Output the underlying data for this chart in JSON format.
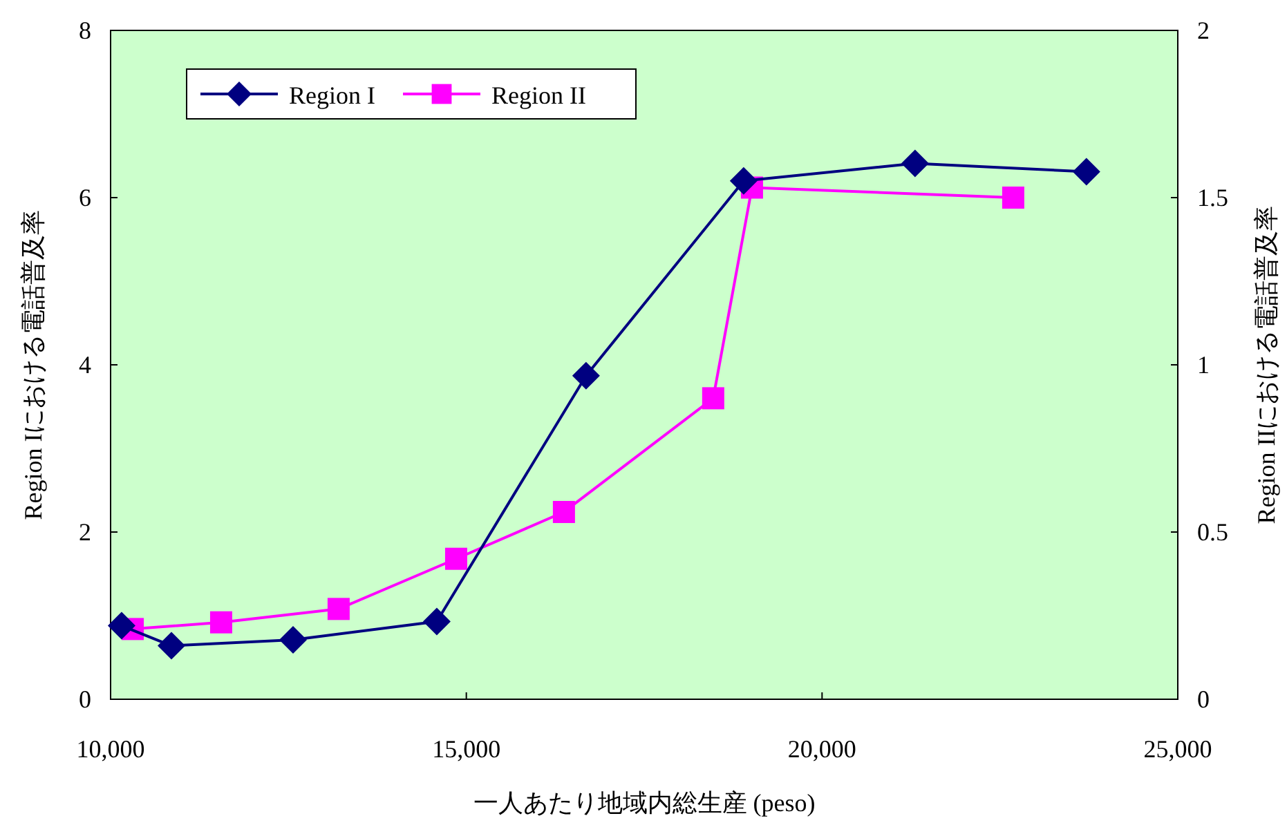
{
  "chart_data": {
    "type": "line",
    "xlabel": "一人あたり地域内総生産 (peso)",
    "ylabel": "Region Iにおける電話普及率",
    "y2label": "Region IIにおける電話普及率",
    "xlim": [
      10000,
      25000
    ],
    "xticks": [
      {
        "value": 10000,
        "label": "10,000"
      },
      {
        "value": 15000,
        "label": "15,000"
      },
      {
        "value": 20000,
        "label": "20,000"
      },
      {
        "value": 25000,
        "label": "25,000"
      }
    ],
    "ylim": [
      0,
      8
    ],
    "yticks": [
      0,
      2,
      4,
      6,
      8
    ],
    "y2lim": [
      0,
      2
    ],
    "y2ticks": [
      0,
      0.5,
      1,
      1.5,
      2
    ],
    "legend": "top left",
    "grid": false,
    "series": [
      {
        "name": "Region I",
        "color": "#000080",
        "marker": "diamond",
        "x": [
          10155,
          10855,
          12565,
          14585,
          16683,
          18898,
          21307,
          23716
        ],
        "values": [
          0.88,
          0.64,
          0.71,
          0.93,
          3.87,
          6.2,
          6.41,
          6.31
        ]
      },
      {
        "name": "Region II",
        "color": "#ff00ff",
        "marker": "square",
        "axis": "y2",
        "x": [
          10311,
          11554,
          13205,
          14857,
          16372,
          18470,
          19015,
          22687
        ],
        "values": [
          0.21,
          0.23,
          0.27,
          0.42,
          0.56,
          0.9,
          1.53,
          1.5
        ]
      }
    ]
  }
}
